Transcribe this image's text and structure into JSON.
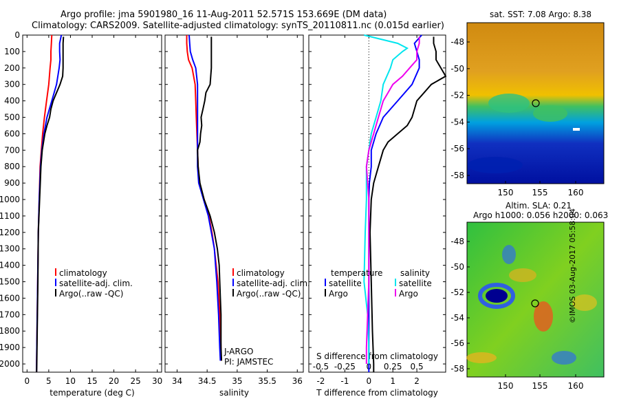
{
  "header": {
    "line1": "Argo profile: jma 5901980_16 11-Aug-2011 52.571S 153.669E (DM data)",
    "line2": "Climatology: CARS2009. Satellite-adjusted climatology: synTS_20110811.nc (0.015d earlier)"
  },
  "side": {
    "watermark": "©IMOS 03-Aug-2017 05:58:04",
    "map1_title": "sat. SST: 7.08 Argo: 8.38",
    "map2_title1": "Altim. SLA: 0.21",
    "map2_title2": "Argo h1000: 0.056 h2000: 0.063"
  },
  "legend": {
    "climatology": "climatology",
    "satellite": "satellite-adj. clim.",
    "argo": "Argo(..raw -QC)",
    "temperature": "temperature",
    "salinity": "salinity",
    "satellite_short": "satellite",
    "argo_short": "Argo"
  },
  "annot": {
    "jargo": "J-ARGO",
    "pi": "PI: JAMSTEC"
  },
  "colors": {
    "climatology": "#ff0000",
    "satellite": "#0000ff",
    "argo": "#000000",
    "sat_salinity": "#00e5ee",
    "argo_salinity": "#ee00ee"
  },
  "chart_data": [
    {
      "type": "line",
      "xlabel": "temperature (deg C)",
      "ylim": [
        2050,
        0
      ],
      "xlim": [
        -1,
        31
      ],
      "xticks": [
        0,
        5,
        10,
        15,
        20,
        25,
        30
      ],
      "yticks": [
        0,
        100,
        200,
        300,
        400,
        500,
        600,
        700,
        800,
        900,
        1000,
        1100,
        1200,
        1300,
        1400,
        1500,
        1600,
        1700,
        1800,
        1900,
        2000
      ],
      "series": [
        {
          "name": "climatology",
          "color": "climatology",
          "depth": [
            0,
            50,
            100,
            150,
            200,
            300,
            400,
            500,
            600,
            700,
            800,
            1000,
            1200,
            1500,
            1800,
            2000,
            2050
          ],
          "values": [
            5.7,
            5.6,
            5.5,
            5.5,
            5.3,
            5.0,
            4.5,
            4.0,
            3.6,
            3.3,
            3.0,
            2.8,
            2.6,
            2.45,
            2.3,
            2.2,
            2.2
          ]
        },
        {
          "name": "satellite-adj. clim.",
          "color": "satellite",
          "depth": [
            0,
            50,
            100,
            150,
            200,
            300,
            400,
            500,
            600,
            700,
            800,
            1000,
            1200,
            1500,
            1800,
            2000,
            2050
          ],
          "values": [
            7.9,
            7.5,
            7.5,
            7.6,
            7.4,
            6.8,
            5.7,
            4.6,
            3.9,
            3.4,
            3.1,
            2.8,
            2.6,
            2.45,
            2.3,
            2.2,
            2.2
          ]
        },
        {
          "name": "Argo(..raw -QC)",
          "color": "argo",
          "depth": [
            10,
            50,
            100,
            150,
            200,
            250,
            300,
            350,
            400,
            450,
            500,
            550,
            600,
            650,
            700,
            800,
            1000,
            1200,
            1500,
            1800,
            2000,
            2050
          ],
          "values": [
            8.4,
            8.3,
            8.3,
            8.3,
            8.3,
            8.2,
            7.6,
            6.8,
            6.0,
            5.5,
            5.2,
            4.6,
            4.1,
            3.8,
            3.5,
            3.2,
            2.9,
            2.6,
            2.5,
            2.35,
            2.25,
            2.2
          ]
        }
      ]
    },
    {
      "type": "line",
      "xlabel": "salinity",
      "ylim": [
        2050,
        0
      ],
      "xlim": [
        33.8,
        36.1
      ],
      "xticks": [
        34,
        34.5,
        35,
        35.5,
        36
      ],
      "series": [
        {
          "name": "climatology",
          "color": "climatology",
          "depth": [
            0,
            50,
            100,
            150,
            200,
            300,
            400,
            500,
            600,
            700,
            800,
            900,
            1000,
            1100,
            1200,
            1300,
            1400,
            1500,
            1700,
            1900,
            1980
          ],
          "values": [
            34.16,
            34.16,
            34.17,
            34.19,
            34.25,
            34.3,
            34.31,
            34.32,
            34.33,
            34.34,
            34.35,
            34.37,
            34.45,
            34.53,
            34.58,
            34.62,
            34.65,
            34.68,
            34.71,
            34.73,
            34.73
          ]
        },
        {
          "name": "satellite-adj. clim.",
          "color": "satellite",
          "depth": [
            0,
            50,
            100,
            150,
            200,
            300,
            400,
            500,
            600,
            700,
            800,
            900,
            1000,
            1100,
            1200,
            1300,
            1400,
            1500,
            1700,
            1900,
            1980
          ],
          "values": [
            34.2,
            34.21,
            34.22,
            34.26,
            34.31,
            34.34,
            34.34,
            34.34,
            34.34,
            34.34,
            34.34,
            34.36,
            34.44,
            34.52,
            34.57,
            34.62,
            34.64,
            34.66,
            34.69,
            34.71,
            34.72
          ]
        },
        {
          "name": "Argo(..raw -QC)",
          "color": "argo",
          "depth": [
            10,
            100,
            200,
            300,
            350,
            400,
            450,
            500,
            550,
            600,
            650,
            700,
            800,
            900,
            1000,
            1100,
            1200,
            1300,
            1400,
            1500,
            1700,
            1900,
            1980
          ],
          "values": [
            34.57,
            34.57,
            34.57,
            34.55,
            34.48,
            34.46,
            34.43,
            34.4,
            34.41,
            34.39,
            34.38,
            34.34,
            34.35,
            34.38,
            34.45,
            34.55,
            34.62,
            34.67,
            34.7,
            34.71,
            34.73,
            34.73,
            34.74
          ]
        }
      ]
    },
    {
      "type": "line",
      "xlabel": "T difference from climatology",
      "top_axis_label": "S difference from climatology",
      "ylim": [
        2050,
        0
      ],
      "xlim": [
        -2.5,
        3.2
      ],
      "xticks": [
        -2,
        -1,
        0,
        1,
        2
      ],
      "top_ticks": [
        "-0.5",
        "-0.25",
        "0",
        "0.25",
        "0.5"
      ],
      "top_tick_x": [
        -2,
        -1,
        0,
        1,
        2
      ],
      "series": [
        {
          "name": "temperature satellite",
          "color": "satellite",
          "depth": [
            0,
            50,
            100,
            150,
            200,
            300,
            400,
            500,
            600,
            700,
            800,
            900,
            1000,
            1100,
            1200,
            1500,
            1800,
            2050
          ],
          "values": [
            2.2,
            1.9,
            2.0,
            2.1,
            2.1,
            1.8,
            1.2,
            0.6,
            0.3,
            0.1,
            0.1,
            0.02,
            0.0,
            0.0,
            0.0,
            0.0,
            0.0,
            0.0
          ]
        },
        {
          "name": "temperature Argo",
          "color": "argo",
          "depth": [
            10,
            50,
            100,
            150,
            200,
            250,
            300,
            350,
            400,
            450,
            500,
            550,
            600,
            650,
            700,
            800,
            900,
            1000,
            1200,
            1500,
            1800,
            2000,
            2050
          ],
          "values": [
            2.7,
            2.7,
            2.8,
            2.8,
            3.0,
            3.2,
            2.6,
            2.3,
            2.0,
            1.9,
            1.8,
            1.6,
            1.2,
            0.8,
            0.6,
            0.4,
            0.2,
            0.1,
            0.05,
            0.1,
            0.15,
            0.2,
            0.2
          ]
        },
        {
          "name": "salinity satellite",
          "color": "sat_salinity",
          "depth": [
            0,
            50,
            80,
            100,
            150,
            200,
            300,
            400,
            500,
            600,
            700,
            800,
            900,
            1000,
            1200,
            1500,
            1700,
            1900,
            2000
          ],
          "values": [
            -0.2,
            1.2,
            1.6,
            1.4,
            1.0,
            0.9,
            0.6,
            0.5,
            0.3,
            0.1,
            0.0,
            -0.1,
            -0.1,
            -0.1,
            -0.15,
            -0.2,
            -0.05,
            0.0,
            0.0
          ]
        },
        {
          "name": "salinity Argo",
          "color": "argo_salinity",
          "depth": [
            10,
            50,
            100,
            150,
            200,
            250,
            300,
            350,
            400,
            450,
            500,
            600,
            700,
            800,
            900,
            1000,
            1500,
            1900,
            2000
          ],
          "values": [
            2.1,
            2.1,
            2.0,
            2.0,
            1.7,
            1.4,
            1.0,
            0.8,
            0.6,
            0.5,
            0.4,
            0.2,
            0.0,
            -0.1,
            -0.05,
            0.0,
            0.0,
            -0.1,
            -0.1
          ]
        }
      ]
    }
  ],
  "maps": {
    "map1": {
      "xticks": [
        "150",
        "155",
        "160"
      ],
      "yticks": [
        "-48",
        "-50",
        "-52",
        "-54",
        "-56",
        "-58"
      ]
    },
    "map2": {
      "xticks": [
        "150",
        "155",
        "160"
      ],
      "yticks": [
        "-48",
        "-50",
        "-52",
        "-54",
        "-56",
        "-58"
      ]
    }
  }
}
